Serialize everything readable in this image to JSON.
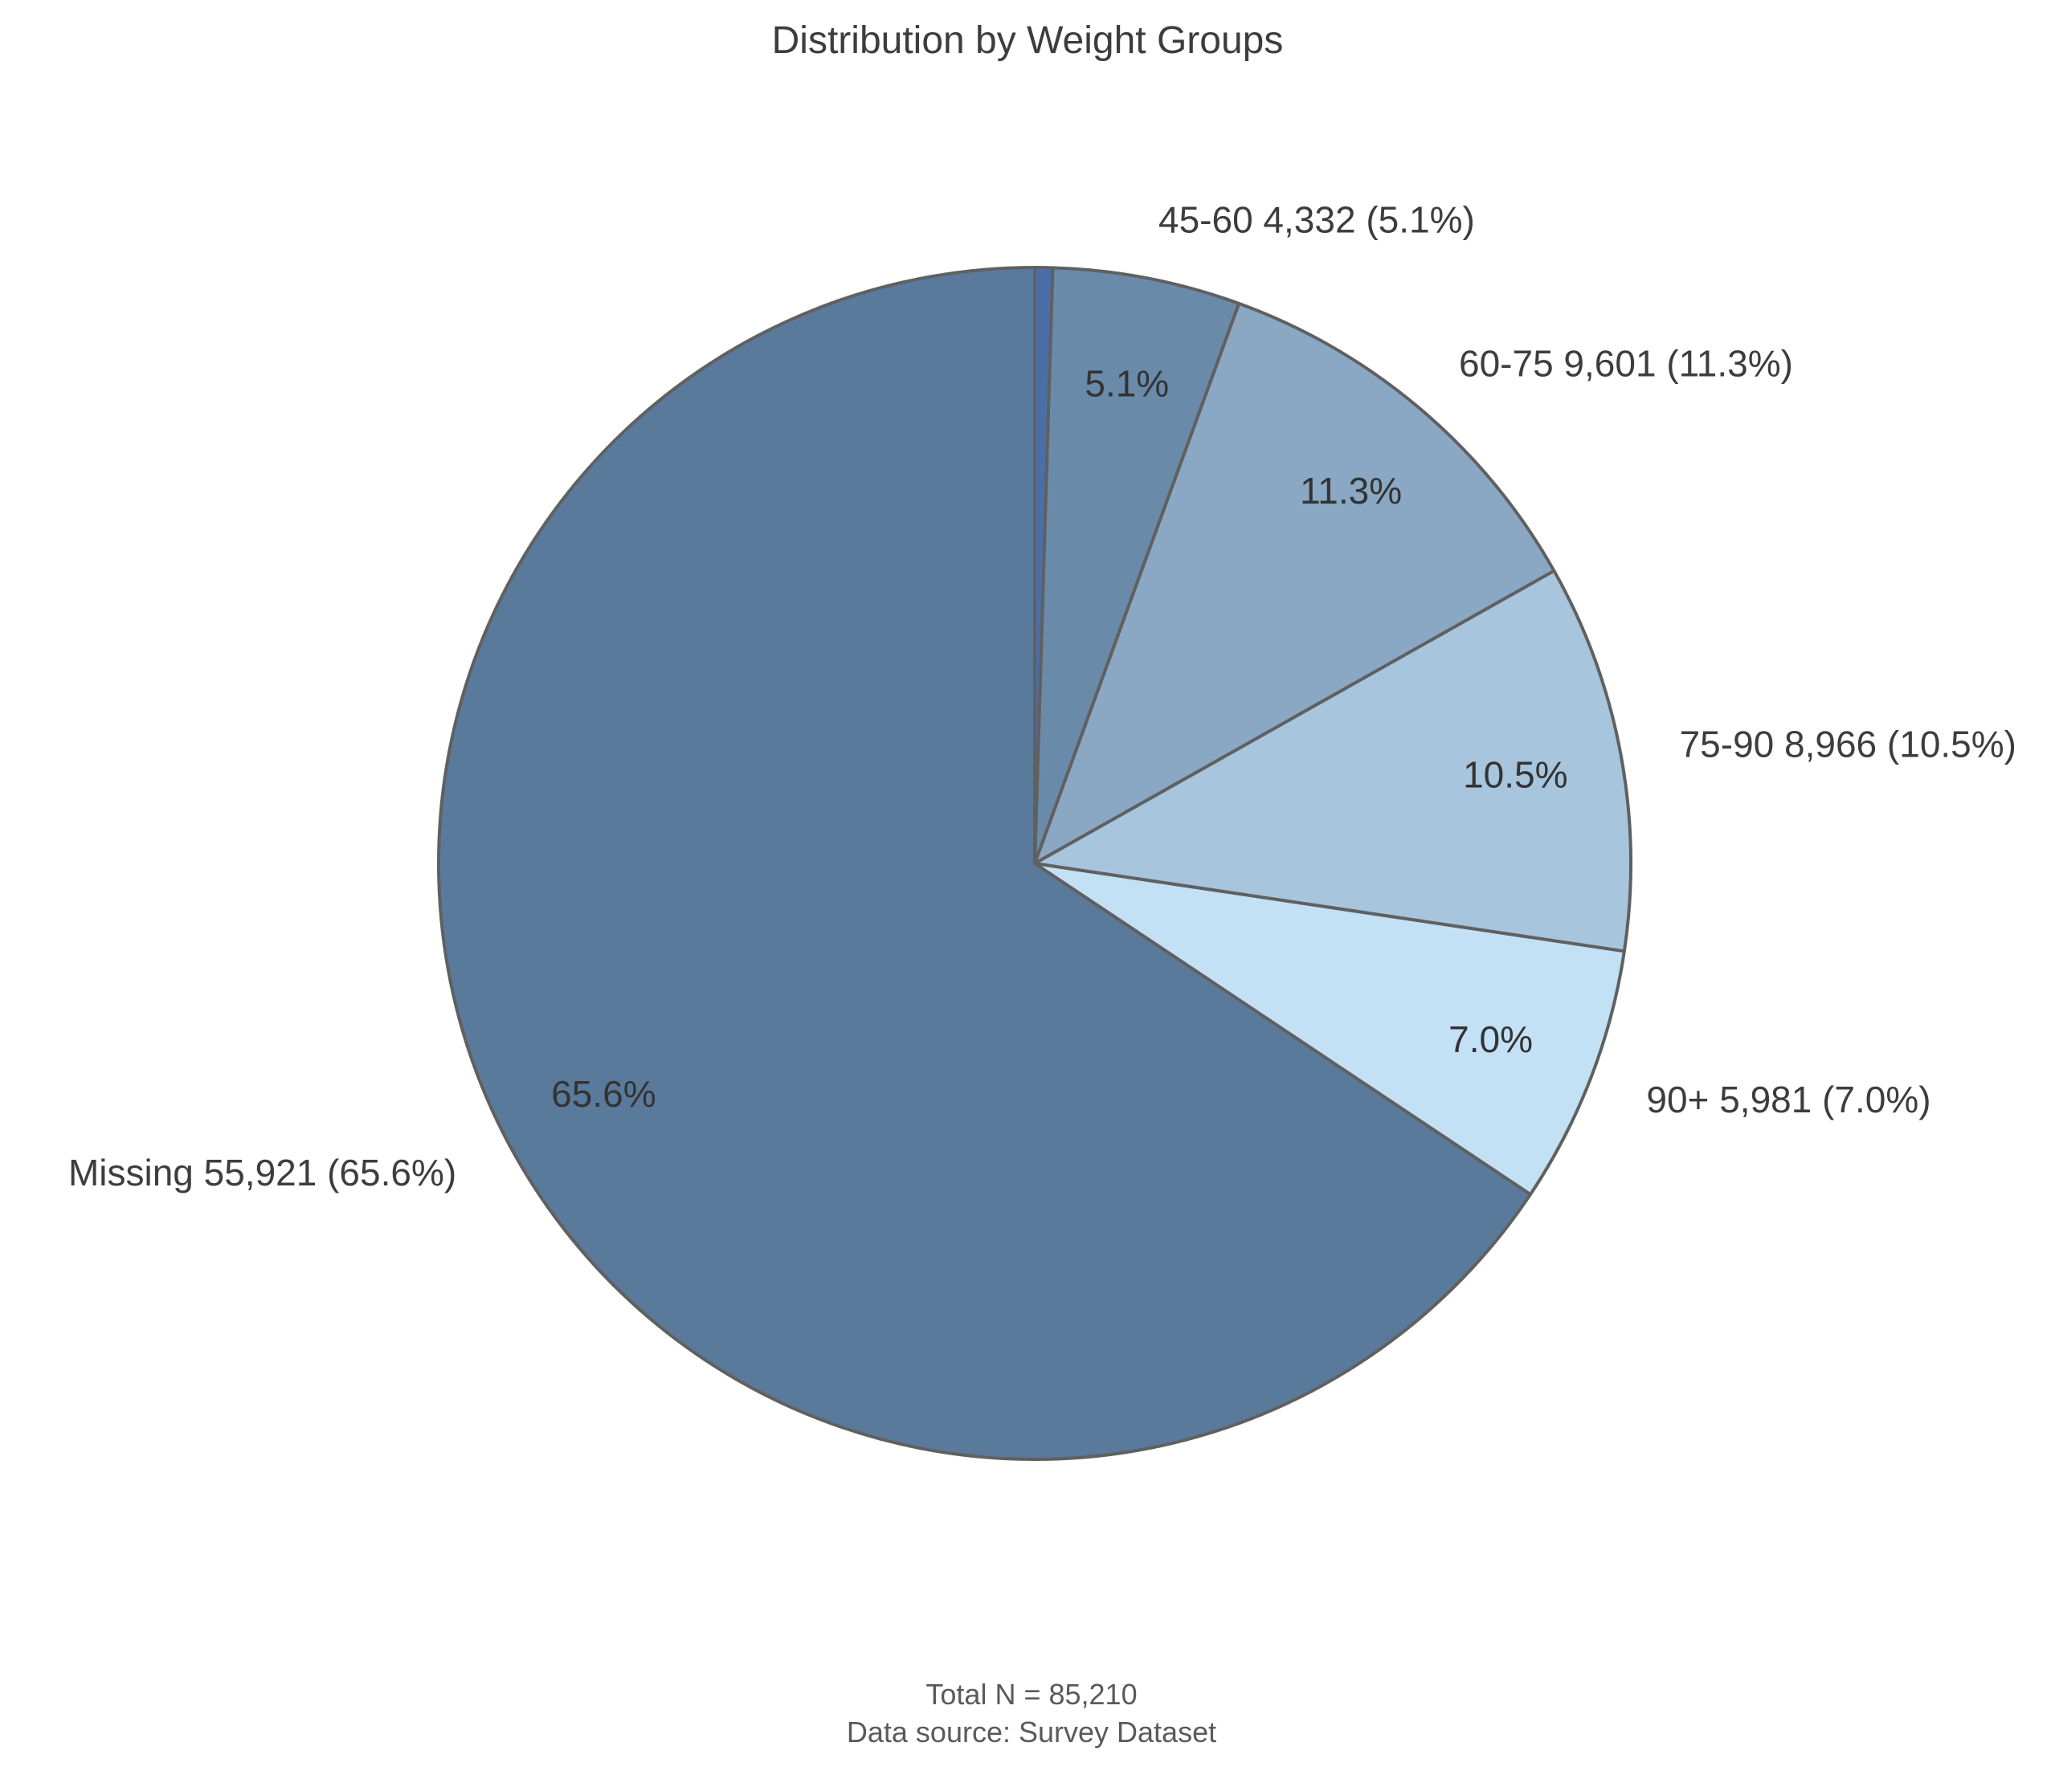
{
  "chart_data": {
    "type": "pie",
    "title": "Distribution by Weight Groups",
    "total": 85210,
    "slices": [
      {
        "category": "Missing",
        "value": 55921,
        "percent": 65.6,
        "outer_label": "Missing 55,921 (65.6%)",
        "inner_label": "65.6%",
        "color": "#5a7a9c"
      },
      {
        "category": "90+",
        "value": 5981,
        "percent": 7.0,
        "outer_label": "90+ 5,981 (7.0%)",
        "inner_label": "7.0%",
        "color": "#c3e1f5"
      },
      {
        "category": "75-90",
        "value": 8966,
        "percent": 10.5,
        "outer_label": "75-90 8,966 (10.5%)",
        "inner_label": "10.5%",
        "color": "#a7c5dd"
      },
      {
        "category": "60-75",
        "value": 9601,
        "percent": 11.3,
        "outer_label": "60-75 9,601 (11.3%)",
        "inner_label": "11.3%",
        "color": "#8aa8c3"
      },
      {
        "category": "45-60",
        "value": 4332,
        "percent": 5.1,
        "outer_label": "45-60 4,332 (5.1%)",
        "inner_label": "5.1%",
        "color": "#6a8aaa"
      },
      {
        "category": "unlabeled",
        "value": 409,
        "color": "#4a6fa8"
      }
    ],
    "start": "top",
    "direction": "counterclockwise",
    "footnote": {
      "line1": "Total N = 85,210",
      "line2": "Data source: Survey Dataset"
    }
  }
}
